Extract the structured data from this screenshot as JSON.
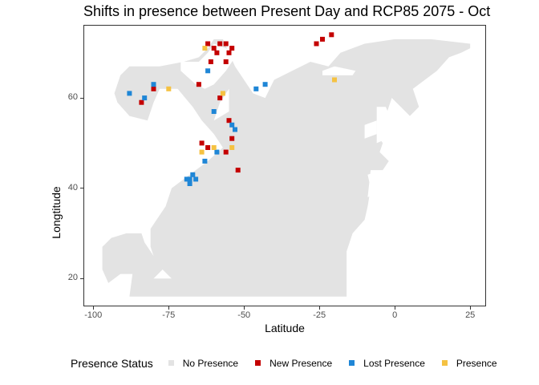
{
  "title": "Shifts in presence between Present Day and RCP85 2075 - Oct",
  "chart_data": {
    "type": "map",
    "title": "Shifts in presence between Present Day and RCP85 2075 - Oct",
    "xlabel": "Latitude",
    "ylabel": "Longtitude",
    "xlim": [
      -103,
      30
    ],
    "ylim": [
      14,
      76
    ],
    "xticks": [
      -100,
      -75,
      -50,
      -25,
      0,
      25
    ],
    "xtick_labels": [
      "-100",
      "-75",
      "-50",
      "-25",
      "0",
      "25"
    ],
    "yticks": [
      20,
      40,
      60
    ],
    "ytick_labels": [
      "20",
      "40",
      "60"
    ],
    "grid": false,
    "legend_position": "bottom",
    "legend_title": "Presence Status",
    "categories": [
      {
        "name": "No Presence",
        "color": "#e3e3e3"
      },
      {
        "name": "New Presence",
        "color": "#c40000"
      },
      {
        "name": "Lost Presence",
        "color": "#1f86d6"
      },
      {
        "name": "Presence",
        "color": "#f5c242"
      }
    ],
    "regions": {
      "ocean": [
        [
          -88,
          16
        ],
        [
          -80,
          16
        ],
        [
          -70,
          16
        ],
        [
          -60,
          16
        ],
        [
          -45,
          16
        ],
        [
          -30,
          16
        ],
        [
          -16,
          16
        ],
        [
          -16,
          22
        ],
        [
          -16,
          26
        ],
        [
          -14,
          30
        ],
        [
          -10,
          33
        ],
        [
          -9,
          36
        ],
        [
          -8,
          40
        ],
        [
          -9,
          43
        ],
        [
          -4,
          44
        ],
        [
          -2,
          46
        ],
        [
          -5,
          48
        ],
        [
          -4,
          50
        ],
        [
          -6,
          52
        ],
        [
          -5,
          54
        ],
        [
          -3,
          56
        ],
        [
          -2,
          58
        ],
        [
          -1,
          60
        ],
        [
          2,
          58
        ],
        [
          5,
          56
        ],
        [
          8,
          58
        ],
        [
          6,
          62
        ],
        [
          10,
          64
        ],
        [
          14,
          66
        ],
        [
          18,
          69
        ],
        [
          22,
          70
        ],
        [
          25,
          71
        ],
        [
          25,
          72
        ],
        [
          12,
          73
        ],
        [
          0,
          73
        ],
        [
          -10,
          72
        ],
        [
          -18,
          70
        ],
        [
          -22,
          67
        ],
        [
          -28,
          68
        ],
        [
          -34,
          66
        ],
        [
          -40,
          64
        ],
        [
          -43,
          60
        ],
        [
          -47,
          61
        ],
        [
          -50,
          64
        ],
        [
          -53,
          67
        ],
        [
          -55,
          70
        ],
        [
          -57,
          73
        ],
        [
          -60,
          73
        ],
        [
          -62,
          71
        ],
        [
          -65,
          69
        ],
        [
          -70,
          68
        ],
        [
          -78,
          67
        ],
        [
          -88,
          67
        ],
        [
          -91,
          65
        ],
        [
          -93,
          61
        ],
        [
          -92,
          59
        ],
        [
          -88,
          56
        ],
        [
          -82,
          55
        ],
        [
          -80,
          59
        ],
        [
          -78,
          62
        ],
        [
          -72,
          62
        ],
        [
          -67,
          58
        ],
        [
          -64,
          55
        ],
        [
          -60,
          52
        ],
        [
          -57,
          49
        ],
        [
          -62,
          46
        ],
        [
          -66,
          44
        ],
        [
          -70,
          42
        ],
        [
          -74,
          40
        ],
        [
          -76,
          36
        ],
        [
          -78,
          34
        ],
        [
          -81,
          31
        ],
        [
          -81,
          27
        ],
        [
          -80,
          25
        ],
        [
          -83,
          28
        ],
        [
          -84,
          30
        ],
        [
          -89,
          30
        ],
        [
          -94,
          29
        ],
        [
          -97,
          27
        ],
        [
          -97,
          22
        ],
        [
          -95,
          19
        ],
        [
          -91,
          21
        ],
        [
          -87,
          21
        ],
        [
          -88,
          16
        ]
      ],
      "land": [
        [
          [
            -71,
            68
          ],
          [
            -65,
            68
          ],
          [
            -62,
            70
          ],
          [
            -60,
            72
          ],
          [
            -52,
            70
          ],
          [
            -56,
            66
          ],
          [
            -60,
            63
          ],
          [
            -63,
            62
          ],
          [
            -66,
            63
          ],
          [
            -71,
            66
          ],
          [
            -71,
            68
          ]
        ],
        [
          [
            -58,
            74
          ],
          [
            -52,
            74
          ],
          [
            -54,
            76
          ],
          [
            -58,
            76
          ],
          [
            -58,
            74
          ]
        ],
        [
          [
            -24,
            65
          ],
          [
            -14,
            65
          ],
          [
            -13,
            66
          ],
          [
            -20,
            67
          ],
          [
            -24,
            66
          ],
          [
            -24,
            65
          ]
        ],
        [
          [
            -6,
            50
          ],
          [
            -6,
            58
          ],
          [
            -3,
            58
          ],
          [
            -1,
            55
          ],
          [
            1,
            52
          ],
          [
            -6,
            50
          ]
        ],
        [
          [
            -10,
            51
          ],
          [
            -6,
            52
          ],
          [
            -6,
            55
          ],
          [
            -10,
            54
          ],
          [
            -10,
            51
          ]
        ],
        [
          [
            -9,
            38
          ],
          [
            -8,
            44
          ],
          [
            -2,
            44
          ],
          [
            -1,
            40
          ],
          [
            -9,
            38
          ]
        ],
        [
          [
            -80,
            20
          ],
          [
            -74,
            20
          ],
          [
            -77,
            22
          ],
          [
            -80,
            20
          ]
        ],
        [
          [
            -60,
            55
          ],
          [
            -55,
            57
          ],
          [
            -55,
            62
          ],
          [
            -58,
            59
          ],
          [
            -60,
            55
          ]
        ]
      ]
    },
    "presence_points": [
      {
        "status": "New Presence",
        "lon": -60,
        "lat": 71
      },
      {
        "status": "New Presence",
        "lon": -58,
        "lat": 72
      },
      {
        "status": "New Presence",
        "lon": -56,
        "lat": 72
      },
      {
        "status": "New Presence",
        "lon": -54,
        "lat": 71
      },
      {
        "status": "New Presence",
        "lon": -62,
        "lat": 72
      },
      {
        "status": "New Presence",
        "lon": -59,
        "lat": 70
      },
      {
        "status": "New Presence",
        "lon": -55,
        "lat": 70
      },
      {
        "status": "New Presence",
        "lon": -61,
        "lat": 68
      },
      {
        "status": "New Presence",
        "lon": -56,
        "lat": 68
      },
      {
        "status": "New Presence",
        "lon": -24,
        "lat": 73
      },
      {
        "status": "New Presence",
        "lon": -21,
        "lat": 74
      },
      {
        "status": "New Presence",
        "lon": -26,
        "lat": 72
      },
      {
        "status": "New Presence",
        "lon": -65,
        "lat": 63
      },
      {
        "status": "New Presence",
        "lon": -58,
        "lat": 60
      },
      {
        "status": "New Presence",
        "lon": -55,
        "lat": 55
      },
      {
        "status": "New Presence",
        "lon": -54,
        "lat": 51
      },
      {
        "status": "New Presence",
        "lon": -56,
        "lat": 48
      },
      {
        "status": "New Presence",
        "lon": -64,
        "lat": 50
      },
      {
        "status": "New Presence",
        "lon": -62,
        "lat": 49
      },
      {
        "status": "New Presence",
        "lon": -84,
        "lat": 59
      },
      {
        "status": "New Presence",
        "lon": -80,
        "lat": 62
      },
      {
        "status": "New Presence",
        "lon": -52,
        "lat": 44
      },
      {
        "status": "Lost Presence",
        "lon": -68,
        "lat": 42
      },
      {
        "status": "Lost Presence",
        "lon": -67,
        "lat": 43
      },
      {
        "status": "Lost Presence",
        "lon": -69,
        "lat": 42
      },
      {
        "status": "Lost Presence",
        "lon": -66,
        "lat": 42
      },
      {
        "status": "Lost Presence",
        "lon": -68,
        "lat": 41
      },
      {
        "status": "Lost Presence",
        "lon": -54,
        "lat": 54
      },
      {
        "status": "Lost Presence",
        "lon": -53,
        "lat": 53
      },
      {
        "status": "Lost Presence",
        "lon": -46,
        "lat": 62
      },
      {
        "status": "Lost Presence",
        "lon": -43,
        "lat": 63
      },
      {
        "status": "Lost Presence",
        "lon": -88,
        "lat": 61
      },
      {
        "status": "Lost Presence",
        "lon": -83,
        "lat": 60
      },
      {
        "status": "Lost Presence",
        "lon": -80,
        "lat": 63
      },
      {
        "status": "Lost Presence",
        "lon": -60,
        "lat": 57
      },
      {
        "status": "Lost Presence",
        "lon": -62,
        "lat": 66
      },
      {
        "status": "Lost Presence",
        "lon": -59,
        "lat": 48
      },
      {
        "status": "Lost Presence",
        "lon": -63,
        "lat": 46
      },
      {
        "status": "Presence",
        "lon": -63,
        "lat": 71
      },
      {
        "status": "Presence",
        "lon": -64,
        "lat": 48
      },
      {
        "status": "Presence",
        "lon": -60,
        "lat": 49
      },
      {
        "status": "Presence",
        "lon": -57,
        "lat": 61
      },
      {
        "status": "Presence",
        "lon": -20,
        "lat": 64
      },
      {
        "status": "Presence",
        "lon": -75,
        "lat": 62
      },
      {
        "status": "Presence",
        "lon": -54,
        "lat": 49
      }
    ]
  }
}
